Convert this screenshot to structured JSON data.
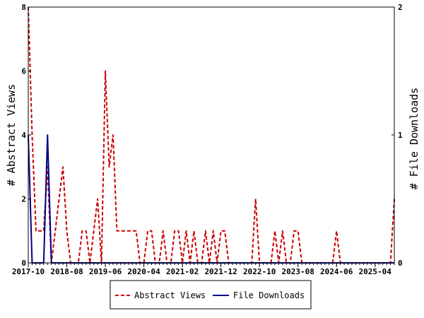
{
  "chart_data": {
    "type": "line",
    "title": "",
    "xlabel": "",
    "ylabel_left": "# Abstract Views",
    "ylabel_right": "# File Downloads",
    "x_tick_labels": [
      "2017-10",
      "2018-08",
      "2019-06",
      "2020-04",
      "2021-02",
      "2021-12",
      "2022-10",
      "2023-08",
      "2024-06",
      "2025-04"
    ],
    "x_range": [
      "2017-10",
      "2025-09"
    ],
    "y_left_ticks": [
      0,
      2,
      4,
      6,
      8
    ],
    "y_left_range": [
      0,
      8
    ],
    "y_right_ticks": [
      0,
      1,
      2
    ],
    "y_right_range": [
      0,
      2
    ],
    "grid": false,
    "legend_position": "bottom",
    "colors": {
      "abstract_views": "#cc0000",
      "file_downloads": "#00008b"
    },
    "series": [
      {
        "name": "Abstract Views",
        "axis": "left",
        "style": "dashed",
        "points": [
          [
            "2017-10",
            8
          ],
          [
            "2017-11",
            4
          ],
          [
            "2017-12",
            1
          ],
          [
            "2018-01",
            1
          ],
          [
            "2018-02",
            1
          ],
          [
            "2018-03",
            3
          ],
          [
            "2018-04",
            0
          ],
          [
            "2018-05",
            1
          ],
          [
            "2018-06",
            2
          ],
          [
            "2018-07",
            3
          ],
          [
            "2018-08",
            1
          ],
          [
            "2018-09",
            0
          ],
          [
            "2018-10",
            0
          ],
          [
            "2018-11",
            0
          ],
          [
            "2018-12",
            1
          ],
          [
            "2019-01",
            1
          ],
          [
            "2019-02",
            0
          ],
          [
            "2019-03",
            1
          ],
          [
            "2019-04",
            2
          ],
          [
            "2019-05",
            0
          ],
          [
            "2019-06",
            6
          ],
          [
            "2019-07",
            3
          ],
          [
            "2019-08",
            4
          ],
          [
            "2019-09",
            1
          ],
          [
            "2019-10",
            1
          ],
          [
            "2019-11",
            1
          ],
          [
            "2019-12",
            1
          ],
          [
            "2020-01",
            1
          ],
          [
            "2020-02",
            1
          ],
          [
            "2020-03",
            0
          ],
          [
            "2020-04",
            0
          ],
          [
            "2020-05",
            1
          ],
          [
            "2020-06",
            1
          ],
          [
            "2020-07",
            0
          ],
          [
            "2020-08",
            0
          ],
          [
            "2020-09",
            1
          ],
          [
            "2020-10",
            0
          ],
          [
            "2020-11",
            0
          ],
          [
            "2020-12",
            1
          ],
          [
            "2021-01",
            1
          ],
          [
            "2021-02",
            0
          ],
          [
            "2021-03",
            1
          ],
          [
            "2021-04",
            0
          ],
          [
            "2021-05",
            1
          ],
          [
            "2021-06",
            0
          ],
          [
            "2021-07",
            0
          ],
          [
            "2021-08",
            1
          ],
          [
            "2021-09",
            0
          ],
          [
            "2021-10",
            1
          ],
          [
            "2021-11",
            0
          ],
          [
            "2021-12",
            1
          ],
          [
            "2022-01",
            1
          ],
          [
            "2022-02",
            0
          ],
          [
            "2022-03",
            0
          ],
          [
            "2022-04",
            0
          ],
          [
            "2022-05",
            0
          ],
          [
            "2022-06",
            0
          ],
          [
            "2022-07",
            0
          ],
          [
            "2022-08",
            0
          ],
          [
            "2022-09",
            2
          ],
          [
            "2022-10",
            0
          ],
          [
            "2022-11",
            0
          ],
          [
            "2022-12",
            0
          ],
          [
            "2023-01",
            0
          ],
          [
            "2023-02",
            1
          ],
          [
            "2023-03",
            0
          ],
          [
            "2023-04",
            1
          ],
          [
            "2023-05",
            0
          ],
          [
            "2023-06",
            0
          ],
          [
            "2023-07",
            1
          ],
          [
            "2023-08",
            1
          ],
          [
            "2023-09",
            0
          ],
          [
            "2023-10",
            0
          ],
          [
            "2023-11",
            0
          ],
          [
            "2023-12",
            0
          ],
          [
            "2024-01",
            0
          ],
          [
            "2024-02",
            0
          ],
          [
            "2024-03",
            0
          ],
          [
            "2024-04",
            0
          ],
          [
            "2024-05",
            0
          ],
          [
            "2024-06",
            1
          ],
          [
            "2024-07",
            0
          ],
          [
            "2024-08",
            0
          ],
          [
            "2024-09",
            0
          ],
          [
            "2024-10",
            0
          ],
          [
            "2024-11",
            0
          ],
          [
            "2024-12",
            0
          ],
          [
            "2025-01",
            0
          ],
          [
            "2025-02",
            0
          ],
          [
            "2025-03",
            0
          ],
          [
            "2025-04",
            0
          ],
          [
            "2025-05",
            0
          ],
          [
            "2025-06",
            0
          ],
          [
            "2025-07",
            0
          ],
          [
            "2025-08",
            0
          ],
          [
            "2025-09",
            2
          ]
        ]
      },
      {
        "name": "File Downloads",
        "axis": "right",
        "style": "solid",
        "points": [
          [
            "2017-10",
            1
          ],
          [
            "2017-11",
            0
          ],
          [
            "2017-12",
            0
          ],
          [
            "2018-01",
            0
          ],
          [
            "2018-02",
            0
          ],
          [
            "2018-03",
            1
          ],
          [
            "2018-04",
            0
          ],
          [
            "2018-05",
            0
          ],
          [
            "2018-06",
            0
          ],
          [
            "2018-07",
            0
          ],
          [
            "2018-08",
            0
          ],
          [
            "2018-09",
            0
          ],
          [
            "2018-10",
            0
          ],
          [
            "2018-11",
            0
          ],
          [
            "2018-12",
            0
          ],
          [
            "2019-01",
            0
          ],
          [
            "2019-02",
            0
          ],
          [
            "2019-03",
            0
          ],
          [
            "2019-04",
            0
          ],
          [
            "2019-05",
            0
          ],
          [
            "2019-06",
            0
          ],
          [
            "2019-07",
            0
          ],
          [
            "2019-08",
            0
          ],
          [
            "2019-09",
            0
          ],
          [
            "2019-10",
            0
          ],
          [
            "2019-11",
            0
          ],
          [
            "2019-12",
            0
          ],
          [
            "2020-01",
            0
          ],
          [
            "2020-02",
            0
          ],
          [
            "2020-03",
            0
          ],
          [
            "2020-04",
            0
          ],
          [
            "2020-05",
            0
          ],
          [
            "2020-06",
            0
          ],
          [
            "2020-07",
            0
          ],
          [
            "2020-08",
            0
          ],
          [
            "2020-09",
            0
          ],
          [
            "2020-10",
            0
          ],
          [
            "2020-11",
            0
          ],
          [
            "2020-12",
            0
          ],
          [
            "2021-01",
            0
          ],
          [
            "2021-02",
            0
          ],
          [
            "2021-03",
            0
          ],
          [
            "2021-04",
            0
          ],
          [
            "2021-05",
            0
          ],
          [
            "2021-06",
            0
          ],
          [
            "2021-07",
            0
          ],
          [
            "2021-08",
            0
          ],
          [
            "2021-09",
            0
          ],
          [
            "2021-10",
            0
          ],
          [
            "2021-11",
            0
          ],
          [
            "2021-12",
            0
          ],
          [
            "2022-01",
            0
          ],
          [
            "2022-02",
            0
          ],
          [
            "2022-03",
            0
          ],
          [
            "2022-04",
            0
          ],
          [
            "2022-05",
            0
          ],
          [
            "2022-06",
            0
          ],
          [
            "2022-07",
            0
          ],
          [
            "2022-08",
            0
          ],
          [
            "2022-09",
            0
          ],
          [
            "2022-10",
            0
          ],
          [
            "2022-11",
            0
          ],
          [
            "2022-12",
            0
          ],
          [
            "2023-01",
            0
          ],
          [
            "2023-02",
            0
          ],
          [
            "2023-03",
            0
          ],
          [
            "2023-04",
            0
          ],
          [
            "2023-05",
            0
          ],
          [
            "2023-06",
            0
          ],
          [
            "2023-07",
            0
          ],
          [
            "2023-08",
            0
          ],
          [
            "2023-09",
            0
          ],
          [
            "2023-10",
            0
          ],
          [
            "2023-11",
            0
          ],
          [
            "2023-12",
            0
          ],
          [
            "2024-01",
            0
          ],
          [
            "2024-02",
            0
          ],
          [
            "2024-03",
            0
          ],
          [
            "2024-04",
            0
          ],
          [
            "2024-05",
            0
          ],
          [
            "2024-06",
            0
          ],
          [
            "2024-07",
            0
          ],
          [
            "2024-08",
            0
          ],
          [
            "2024-09",
            0
          ],
          [
            "2024-10",
            0
          ],
          [
            "2024-11",
            0
          ],
          [
            "2024-12",
            0
          ],
          [
            "2025-01",
            0
          ],
          [
            "2025-02",
            0
          ],
          [
            "2025-03",
            0
          ],
          [
            "2025-04",
            0
          ],
          [
            "2025-05",
            0
          ],
          [
            "2025-06",
            0
          ],
          [
            "2025-07",
            0
          ],
          [
            "2025-08",
            0
          ],
          [
            "2025-09",
            0
          ]
        ]
      }
    ]
  }
}
